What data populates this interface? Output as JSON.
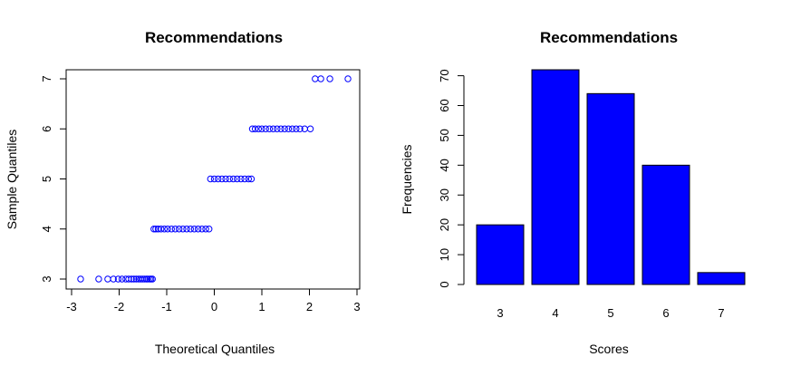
{
  "chart_data": [
    {
      "type": "scatter",
      "title": "Recommendations",
      "xlabel": "Theoretical Quantiles",
      "ylabel": "Sample Quantiles",
      "xlim": [
        -3,
        3
      ],
      "ylim": [
        3,
        7
      ],
      "x_ticks": [
        -3,
        -2,
        -1,
        0,
        1,
        2,
        3
      ],
      "y_ticks": [
        3,
        4,
        5,
        6,
        7
      ],
      "point_color": "#0000ff",
      "marker": "open-circle",
      "grid": false,
      "series": [
        {
          "points": [
            {
              "x": -2.81,
              "y": 3
            },
            {
              "x": -2.43,
              "y": 3
            },
            {
              "x": -2.24,
              "y": 3
            },
            {
              "x": -2.12,
              "y": 3
            },
            {
              "x": -2.02,
              "y": 3
            },
            {
              "x": -1.94,
              "y": 3
            },
            {
              "x": -1.86,
              "y": 3
            },
            {
              "x": -1.8,
              "y": 3
            },
            {
              "x": -1.74,
              "y": 3
            },
            {
              "x": -1.69,
              "y": 3
            },
            {
              "x": -1.64,
              "y": 3
            },
            {
              "x": -1.59,
              "y": 3
            },
            {
              "x": -1.55,
              "y": 3
            },
            {
              "x": -1.51,
              "y": 3
            },
            {
              "x": -1.47,
              "y": 3
            },
            {
              "x": -1.43,
              "y": 3
            },
            {
              "x": -1.4,
              "y": 3
            },
            {
              "x": -1.36,
              "y": 3
            },
            {
              "x": -1.33,
              "y": 3
            },
            {
              "x": -1.3,
              "y": 3
            },
            {
              "x": -1.27,
              "y": 4
            },
            {
              "x": -1.23,
              "y": 4
            },
            {
              "x": -1.18,
              "y": 4
            },
            {
              "x": -1.12,
              "y": 4
            },
            {
              "x": -1.05,
              "y": 4
            },
            {
              "x": -0.98,
              "y": 4
            },
            {
              "x": -0.9,
              "y": 4
            },
            {
              "x": -0.82,
              "y": 4
            },
            {
              "x": -0.74,
              "y": 4
            },
            {
              "x": -0.66,
              "y": 4
            },
            {
              "x": -0.58,
              "y": 4
            },
            {
              "x": -0.5,
              "y": 4
            },
            {
              "x": -0.42,
              "y": 4
            },
            {
              "x": -0.34,
              "y": 4
            },
            {
              "x": -0.26,
              "y": 4
            },
            {
              "x": -0.18,
              "y": 4
            },
            {
              "x": -0.11,
              "y": 4
            },
            {
              "x": -0.08,
              "y": 5
            },
            {
              "x": 0.0,
              "y": 5
            },
            {
              "x": 0.08,
              "y": 5
            },
            {
              "x": 0.16,
              "y": 5
            },
            {
              "x": 0.24,
              "y": 5
            },
            {
              "x": 0.32,
              "y": 5
            },
            {
              "x": 0.4,
              "y": 5
            },
            {
              "x": 0.48,
              "y": 5
            },
            {
              "x": 0.56,
              "y": 5
            },
            {
              "x": 0.64,
              "y": 5
            },
            {
              "x": 0.72,
              "y": 5
            },
            {
              "x": 0.78,
              "y": 5
            },
            {
              "x": 0.8,
              "y": 6
            },
            {
              "x": 0.86,
              "y": 6
            },
            {
              "x": 0.93,
              "y": 6
            },
            {
              "x": 1.0,
              "y": 6
            },
            {
              "x": 1.08,
              "y": 6
            },
            {
              "x": 1.16,
              "y": 6
            },
            {
              "x": 1.24,
              "y": 6
            },
            {
              "x": 1.32,
              "y": 6
            },
            {
              "x": 1.4,
              "y": 6
            },
            {
              "x": 1.48,
              "y": 6
            },
            {
              "x": 1.56,
              "y": 6
            },
            {
              "x": 1.64,
              "y": 6
            },
            {
              "x": 1.72,
              "y": 6
            },
            {
              "x": 1.8,
              "y": 6
            },
            {
              "x": 1.9,
              "y": 6
            },
            {
              "x": 2.02,
              "y": 6
            },
            {
              "x": 2.12,
              "y": 7
            },
            {
              "x": 2.24,
              "y": 7
            },
            {
              "x": 2.43,
              "y": 7
            },
            {
              "x": 2.81,
              "y": 7
            }
          ]
        }
      ]
    },
    {
      "type": "bar",
      "title": "Recommendations",
      "xlabel": "Scores",
      "ylabel": "Frequencies",
      "categories": [
        "3",
        "4",
        "5",
        "6",
        "7"
      ],
      "values": [
        20,
        72,
        64,
        40,
        4
      ],
      "ylim": [
        0,
        72
      ],
      "y_ticks": [
        0,
        10,
        20,
        30,
        40,
        50,
        60,
        70
      ],
      "bar_color": "#0000ff",
      "grid": false
    }
  ]
}
